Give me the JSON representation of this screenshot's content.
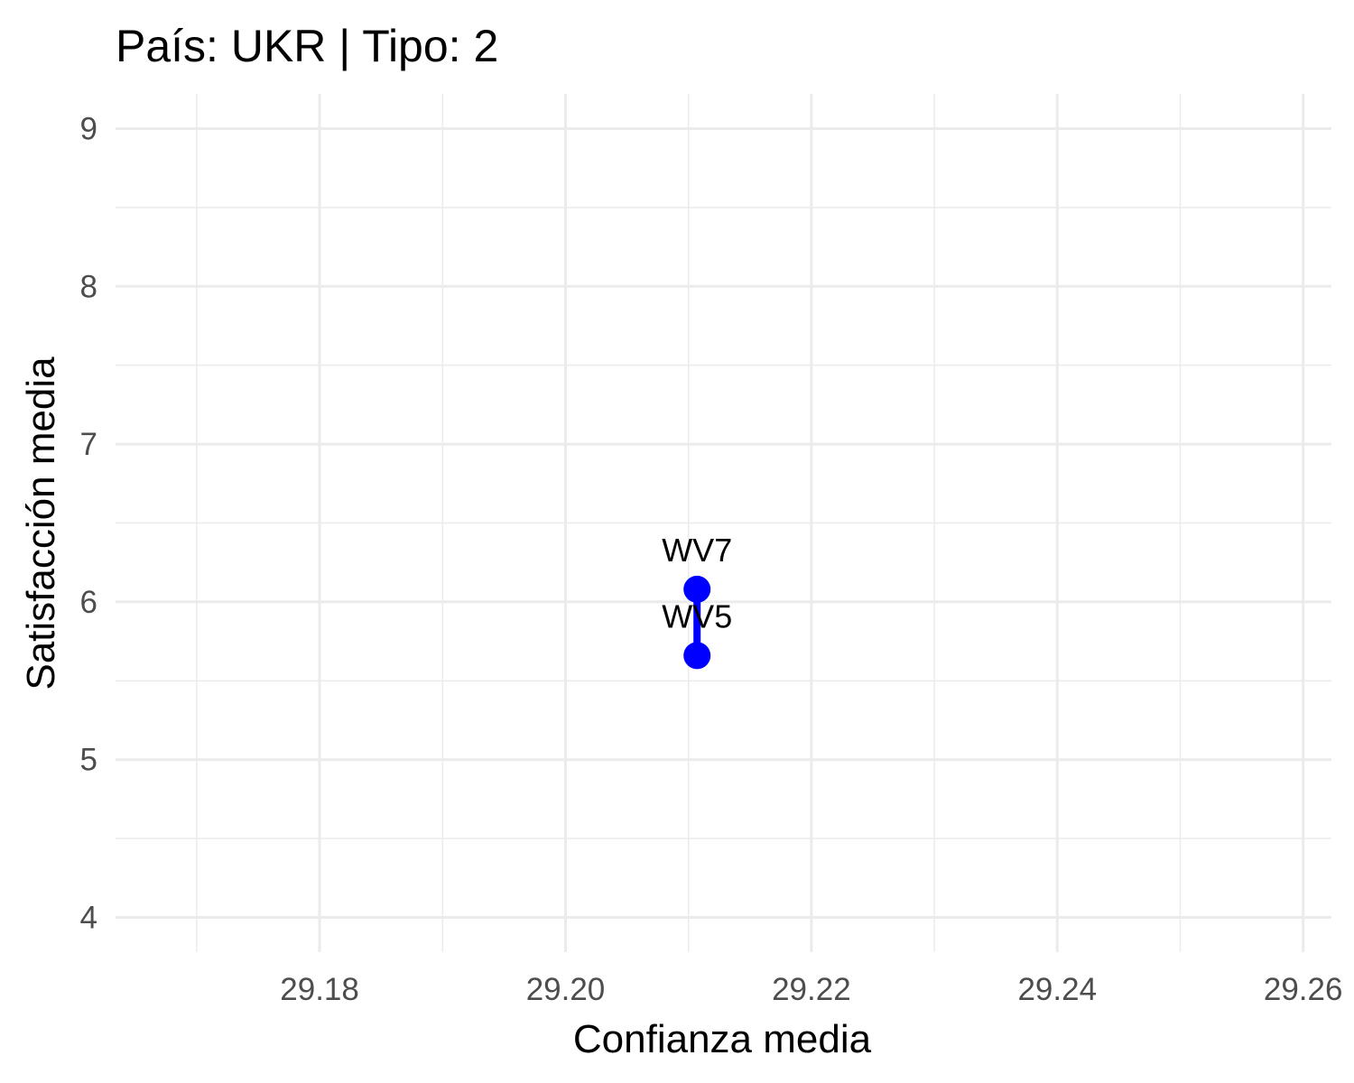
{
  "chart_data": {
    "type": "line",
    "title": "País: UKR | Tipo: 2",
    "xlabel": "Confianza media",
    "ylabel": "Satisfacción media",
    "xlim": [
      29.1634,
      29.2623
    ],
    "ylim": [
      3.78,
      9.22
    ],
    "x_ticks": [
      29.18,
      29.2,
      29.22,
      29.24,
      29.26
    ],
    "x_tick_labels": [
      "29.18",
      "29.20",
      "29.22",
      "29.24",
      "29.26"
    ],
    "y_ticks": [
      4,
      5,
      6,
      7,
      8,
      9
    ],
    "y_tick_labels": [
      "4",
      "5",
      "6",
      "7",
      "8",
      "9"
    ],
    "grid": true,
    "series": [
      {
        "color": "#0000ff",
        "points": [
          {
            "x": 29.2107,
            "y": 5.66,
            "label": "WV5"
          },
          {
            "x": 29.2107,
            "y": 6.08,
            "label": "WV7"
          }
        ]
      }
    ]
  }
}
